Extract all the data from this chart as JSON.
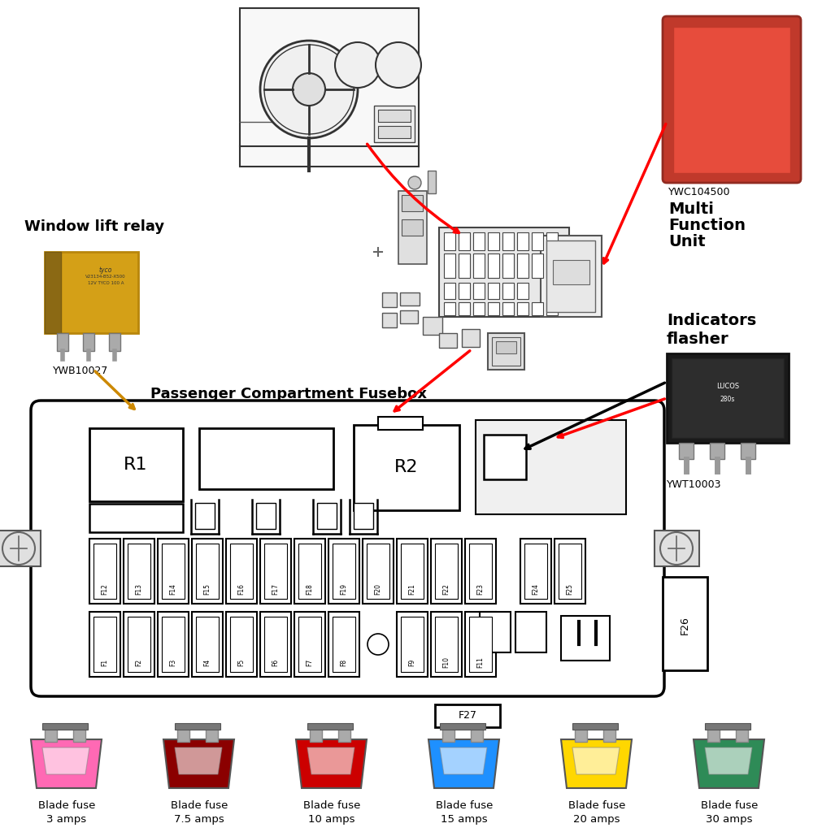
{
  "bg_color": "#ffffff",
  "fusebox_label": "Passenger Compartment Fusebox",
  "window_relay_label": "Window lift relay",
  "window_relay_part": "YWB10027",
  "mfu_label1": "YWC104500",
  "mfu_label2": "Multi",
  "mfu_label3": "Function",
  "mfu_label4": "Unit",
  "indicators_label1": "Indicators",
  "indicators_label2": "flasher",
  "indicators_part": "YWT10003",
  "top_fuses_row": [
    "F12",
    "F13",
    "F14",
    "F15",
    "F16",
    "F17",
    "F18",
    "F19",
    "F20",
    "F21",
    "F22",
    "F23"
  ],
  "bot_fuses_row": [
    "F1",
    "F2",
    "F3",
    "F4",
    "F5",
    "F6",
    "F7",
    "F8",
    "",
    "F9",
    "F10",
    "F11"
  ],
  "right_fuses": [
    "F24",
    "F25"
  ],
  "f26_label": "F26",
  "f27_label": "F27",
  "fuse_colors": [
    "#ff69b4",
    "#8b0000",
    "#cc0000",
    "#1e90ff",
    "#ffd700",
    "#2e8b57"
  ],
  "fuse_amps": [
    "3 amps",
    "7.5 amps",
    "10 amps",
    "15 amps",
    "20 amps",
    "30 amps"
  ]
}
